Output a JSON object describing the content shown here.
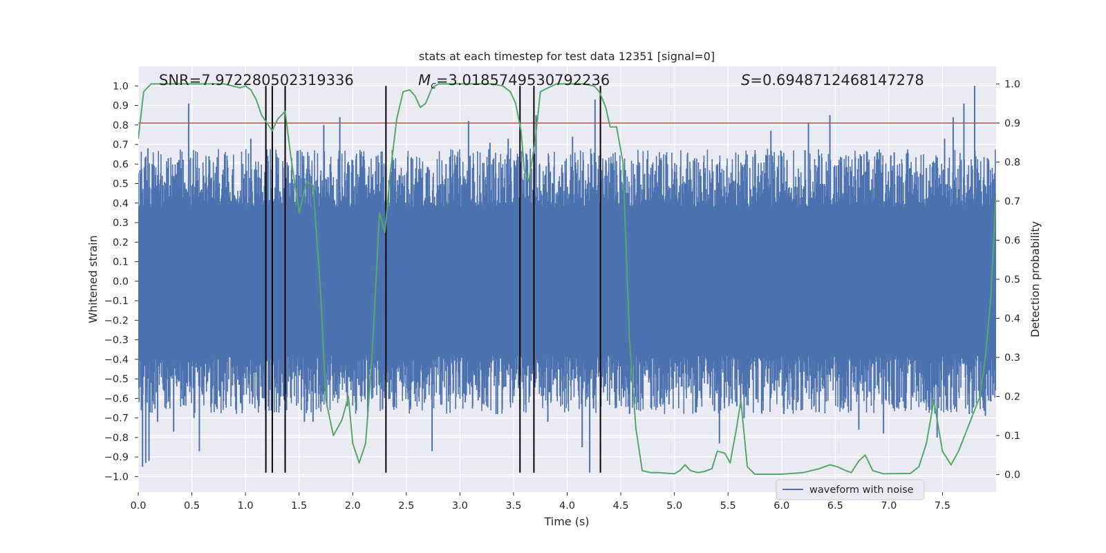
{
  "chart_data": {
    "type": "line",
    "title": "stats at each timestep for test data 12351 [signal=0]",
    "xlabel": "Time (s)",
    "ylabel": "Whitened strain",
    "y2label": "Detection probability",
    "xlim": [
      0.0,
      8.0
    ],
    "ylim": [
      -1.08,
      1.1
    ],
    "y2lim": [
      -0.045,
      1.045
    ],
    "xticks": [
      0.0,
      0.5,
      1.0,
      1.5,
      2.0,
      2.5,
      3.0,
      3.5,
      4.0,
      4.5,
      5.0,
      5.5,
      6.0,
      6.5,
      7.0,
      7.5
    ],
    "xtick_labels": [
      "0.0",
      "0.5",
      "1.0",
      "1.5",
      "2.0",
      "2.5",
      "3.0",
      "3.5",
      "4.0",
      "4.5",
      "5.0",
      "5.5",
      "6.0",
      "6.5",
      "7.0",
      "7.5"
    ],
    "yticks": [
      -1.0,
      -0.9,
      -0.8,
      -0.7,
      -0.6,
      -0.5,
      -0.4,
      -0.3,
      -0.2,
      -0.1,
      0.0,
      0.1,
      0.2,
      0.3,
      0.4,
      0.5,
      0.6,
      0.7,
      0.8,
      0.9,
      1.0
    ],
    "ytick_labels": [
      "−1.0",
      "−0.9",
      "−0.8",
      "−0.7",
      "−0.6",
      "−0.5",
      "−0.4",
      "−0.3",
      "−0.2",
      "−0.1",
      "0.0",
      "0.1",
      "0.2",
      "0.3",
      "0.4",
      "0.5",
      "0.6",
      "0.7",
      "0.8",
      "0.9",
      "1.0"
    ],
    "y2ticks": [
      0.0,
      0.1,
      0.2,
      0.3,
      0.4,
      0.5,
      0.6,
      0.7,
      0.8,
      0.9,
      1.0
    ],
    "y2tick_labels": [
      "0.0",
      "0.1",
      "0.2",
      "0.3",
      "0.4",
      "0.5",
      "0.6",
      "0.7",
      "0.8",
      "0.9",
      "1.0"
    ],
    "grid": true,
    "legend": {
      "placement": "lower-right",
      "entries": [
        "waveform with noise"
      ]
    },
    "annotations": {
      "snr": "SNR=7.972280502319336",
      "mc_symbol": "M",
      "mc_subscript": "c",
      "mc_value": "=3.0185749530792236",
      "s_symbol": "S",
      "s_value": "=0.6948712468147278"
    },
    "threshold": {
      "y2": 0.9,
      "color": "#c44e52"
    },
    "vlines": {
      "x": [
        1.19,
        1.25,
        1.37,
        2.31,
        3.56,
        3.69,
        4.31
      ],
      "y_from": -0.98,
      "y_to": 1.0,
      "color": "#000000"
    },
    "series": [
      {
        "name": "waveform with noise",
        "axis": "left",
        "color": "#4c72b0",
        "kind": "dense noise trace",
        "band_envelope": 0.38,
        "peak_values": [
          [
            0.02,
            0.45
          ],
          [
            0.04,
            -0.95
          ],
          [
            0.06,
            0.55
          ],
          [
            0.07,
            -0.93
          ],
          [
            0.09,
            0.68
          ],
          [
            0.1,
            -0.92
          ],
          [
            0.13,
            0.6
          ],
          [
            0.18,
            -0.72
          ],
          [
            0.28,
            0.63
          ],
          [
            0.33,
            -0.77
          ],
          [
            0.38,
            0.62
          ],
          [
            0.47,
            0.91
          ],
          [
            0.52,
            -0.7
          ],
          [
            0.57,
            -0.87
          ],
          [
            0.66,
            0.64
          ],
          [
            0.72,
            -0.63
          ],
          [
            0.83,
            0.62
          ],
          [
            0.97,
            -0.66
          ],
          [
            1.05,
            0.73
          ],
          [
            1.12,
            -0.62
          ],
          [
            1.25,
            0.62
          ],
          [
            1.33,
            -0.59
          ],
          [
            1.43,
            0.57
          ],
          [
            1.55,
            -0.72
          ],
          [
            1.6,
            0.55
          ],
          [
            1.63,
            -0.72
          ],
          [
            1.73,
            0.8
          ],
          [
            1.88,
            0.84
          ],
          [
            1.95,
            -0.64
          ],
          [
            2.07,
            0.65
          ],
          [
            2.14,
            -0.7
          ],
          [
            2.22,
            0.64
          ],
          [
            2.27,
            -0.55
          ],
          [
            2.38,
            0.62
          ],
          [
            2.54,
            -0.64
          ],
          [
            2.63,
            0.56
          ],
          [
            2.74,
            -0.87
          ],
          [
            2.87,
            0.6
          ],
          [
            2.95,
            0.57
          ],
          [
            3.05,
            -0.62
          ],
          [
            3.08,
            0.82
          ],
          [
            3.17,
            -0.61
          ],
          [
            3.28,
            0.71
          ],
          [
            3.35,
            -0.68
          ],
          [
            3.45,
            0.73
          ],
          [
            3.56,
            -0.65
          ],
          [
            3.63,
            0.62
          ],
          [
            3.71,
            0.85
          ],
          [
            3.82,
            -0.72
          ],
          [
            3.95,
            0.58
          ],
          [
            4.05,
            0.74
          ],
          [
            4.14,
            -0.85
          ],
          [
            4.21,
            -0.98
          ],
          [
            4.26,
            0.93
          ],
          [
            4.36,
            0.62
          ],
          [
            4.45,
            -0.65
          ],
          [
            4.5,
            0.57
          ],
          [
            4.6,
            0.49
          ],
          [
            4.7,
            -0.6
          ],
          [
            4.8,
            0.45
          ],
          [
            4.95,
            -0.63
          ],
          [
            5.1,
            0.5
          ],
          [
            5.25,
            -0.6
          ],
          [
            5.4,
            0.6
          ],
          [
            5.42,
            -0.83
          ],
          [
            5.55,
            0.51
          ],
          [
            5.65,
            -0.7
          ],
          [
            5.75,
            0.65
          ],
          [
            5.9,
            0.77
          ],
          [
            6.02,
            -0.68
          ],
          [
            6.05,
            0.62
          ],
          [
            6.15,
            -0.62
          ],
          [
            6.25,
            0.81
          ],
          [
            6.35,
            -0.67
          ],
          [
            6.45,
            0.85
          ],
          [
            6.55,
            -0.63
          ],
          [
            6.62,
            0.56
          ],
          [
            6.72,
            -0.76
          ],
          [
            6.8,
            0.58
          ],
          [
            6.95,
            -0.78
          ],
          [
            7.05,
            0.66
          ],
          [
            7.1,
            -0.62
          ],
          [
            7.2,
            0.58
          ],
          [
            7.3,
            -0.62
          ],
          [
            7.35,
            0.58
          ],
          [
            7.45,
            -0.8
          ],
          [
            7.52,
            0.73
          ],
          [
            7.6,
            0.84
          ],
          [
            7.7,
            0.91
          ],
          [
            7.75,
            -0.68
          ],
          [
            7.8,
            1.0
          ],
          [
            7.9,
            -0.69
          ],
          [
            7.92,
            0.63
          ],
          [
            7.97,
            0.34
          ]
        ]
      },
      {
        "name": "",
        "axis": "right",
        "color": "#55a868",
        "kind": "line",
        "points": [
          [
            0.0,
            0.86
          ],
          [
            0.05,
            0.98
          ],
          [
            0.12,
            1.0
          ],
          [
            0.5,
            1.0
          ],
          [
            0.8,
            1.0
          ],
          [
            0.95,
            0.99
          ],
          [
            1.0,
            0.995
          ],
          [
            1.05,
            0.985
          ],
          [
            1.1,
            0.96
          ],
          [
            1.15,
            0.92
          ],
          [
            1.2,
            0.9
          ],
          [
            1.25,
            0.88
          ],
          [
            1.3,
            0.91
          ],
          [
            1.37,
            0.93
          ],
          [
            1.42,
            0.82
          ],
          [
            1.5,
            0.67
          ],
          [
            1.57,
            0.75
          ],
          [
            1.63,
            0.74
          ],
          [
            1.7,
            0.47
          ],
          [
            1.75,
            0.19
          ],
          [
            1.82,
            0.1
          ],
          [
            1.9,
            0.14
          ],
          [
            1.96,
            0.2
          ],
          [
            2.0,
            0.08
          ],
          [
            2.06,
            0.03
          ],
          [
            2.12,
            0.08
          ],
          [
            2.18,
            0.3
          ],
          [
            2.25,
            0.67
          ],
          [
            2.3,
            0.62
          ],
          [
            2.35,
            0.77
          ],
          [
            2.41,
            0.91
          ],
          [
            2.47,
            0.98
          ],
          [
            2.53,
            0.985
          ],
          [
            2.58,
            0.97
          ],
          [
            2.63,
            0.94
          ],
          [
            2.68,
            0.95
          ],
          [
            2.74,
            0.99
          ],
          [
            2.8,
            1.0
          ],
          [
            3.1,
            1.0
          ],
          [
            3.3,
            1.0
          ],
          [
            3.4,
            0.995
          ],
          [
            3.47,
            0.98
          ],
          [
            3.52,
            0.95
          ],
          [
            3.57,
            0.88
          ],
          [
            3.6,
            0.78
          ],
          [
            3.64,
            0.75
          ],
          [
            3.7,
            0.85
          ],
          [
            3.75,
            0.98
          ],
          [
            3.82,
            0.99
          ],
          [
            3.9,
            1.0
          ],
          [
            4.15,
            1.0
          ],
          [
            4.25,
            0.995
          ],
          [
            4.3,
            0.98
          ],
          [
            4.36,
            0.94
          ],
          [
            4.4,
            0.89
          ],
          [
            4.46,
            0.89
          ],
          [
            4.52,
            0.8
          ],
          [
            4.58,
            0.35
          ],
          [
            4.64,
            0.12
          ],
          [
            4.7,
            0.01
          ],
          [
            4.78,
            0.005
          ],
          [
            4.85,
            0.005
          ],
          [
            5.0,
            0.002
          ],
          [
            5.05,
            0.01
          ],
          [
            5.1,
            0.025
          ],
          [
            5.15,
            0.01
          ],
          [
            5.22,
            0.005
          ],
          [
            5.28,
            0.008
          ],
          [
            5.35,
            0.015
          ],
          [
            5.4,
            0.06
          ],
          [
            5.47,
            0.055
          ],
          [
            5.52,
            0.03
          ],
          [
            5.58,
            0.12
          ],
          [
            5.62,
            0.19
          ],
          [
            5.68,
            0.02
          ],
          [
            5.75,
            0.001
          ],
          [
            6.0,
            0.001
          ],
          [
            6.2,
            0.005
          ],
          [
            6.35,
            0.015
          ],
          [
            6.45,
            0.025
          ],
          [
            6.52,
            0.02
          ],
          [
            6.6,
            0.01
          ],
          [
            6.65,
            0.005
          ],
          [
            6.72,
            0.035
          ],
          [
            6.78,
            0.05
          ],
          [
            6.85,
            0.01
          ],
          [
            6.95,
            0.002
          ],
          [
            7.2,
            0.003
          ],
          [
            7.28,
            0.02
          ],
          [
            7.35,
            0.08
          ],
          [
            7.42,
            0.19
          ],
          [
            7.5,
            0.06
          ],
          [
            7.58,
            0.025
          ],
          [
            7.65,
            0.06
          ],
          [
            7.75,
            0.13
          ],
          [
            7.85,
            0.2
          ],
          [
            7.9,
            0.3
          ],
          [
            7.95,
            0.45
          ],
          [
            8.0,
            0.72
          ]
        ]
      }
    ]
  }
}
